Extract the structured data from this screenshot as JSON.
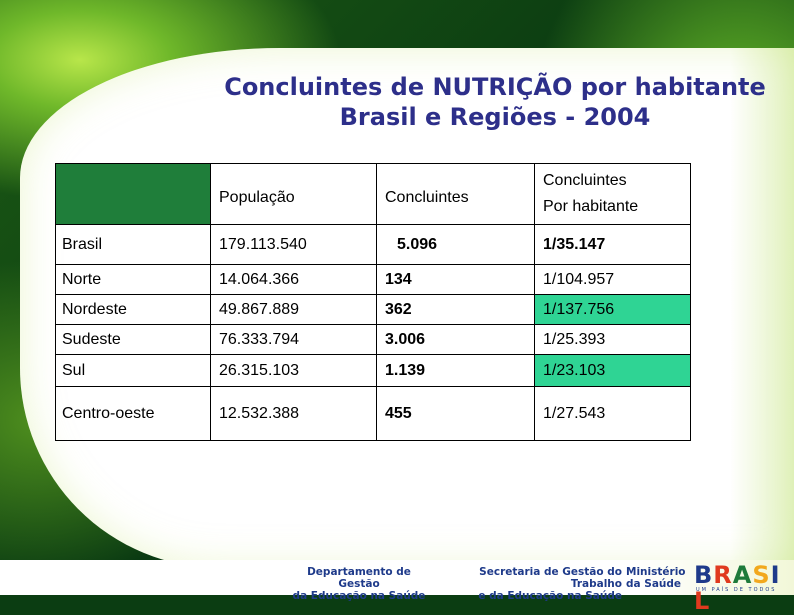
{
  "title": {
    "line1": "Concluintes de NUTRIÇÃO por habitante",
    "line2": "Brasil e Regiões - 2004"
  },
  "table": {
    "headers": {
      "populacao": "População",
      "concluintes": "Concluintes",
      "por_habitante_1": "Concluintes",
      "por_habitante_2": "Por habitante"
    },
    "rows": [
      {
        "regiao": "Brasil",
        "populacao": "179.113.540",
        "concluintes": "5.096",
        "por_habitante": "1/35.147",
        "highlight": false
      },
      {
        "regiao": "Norte",
        "populacao": "14.064.366",
        "concluintes": "134",
        "por_habitante": "1/104.957",
        "highlight": false
      },
      {
        "regiao": "Nordeste",
        "populacao": "49.867.889",
        "concluintes": "362",
        "por_habitante": "1/137.756",
        "highlight": true
      },
      {
        "regiao": "Sudeste",
        "populacao": "76.333.794",
        "concluintes": "3.006",
        "por_habitante": "1/25.393",
        "highlight": false
      },
      {
        "regiao": "Sul",
        "populacao": "26.315.103",
        "concluintes": "1.139",
        "por_habitante": "1/23.103",
        "highlight": true
      },
      {
        "regiao": "Centro-oeste",
        "populacao": "12.532.388",
        "concluintes": "455",
        "por_habitante": "1/27.543",
        "highlight": false
      }
    ]
  },
  "footer": {
    "dept_line1": "Departamento de Gestão",
    "dept_line2": "da Educação na Saúde",
    "sec_line1": "Secretaria de Gestão do Trabalho",
    "sec_line2": "e da Educação na Saúde",
    "min_line1": "Ministério",
    "min_line2": "da Saúde",
    "logo_text": "BRASIL",
    "logo_sub": "UM PAÍS DE TODOS"
  },
  "colors": {
    "title": "#2d2f8a",
    "highlight": "#2fd494",
    "header_blank": "#1f7e3a",
    "footer_text": "#1e3a8a"
  }
}
